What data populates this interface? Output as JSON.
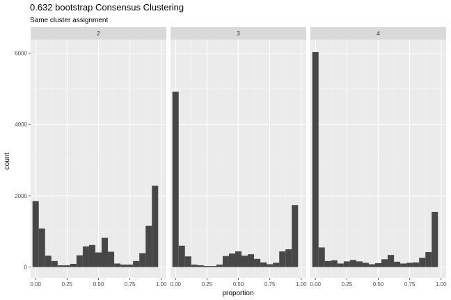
{
  "chart_data": {
    "type": "bar",
    "title": "0.632 bootstrap Consensus Clustering",
    "subtitle": "Same cluster assignment",
    "xlabel": "proportion",
    "ylabel": "count",
    "x_ticks": [
      "0.00",
      "0.25",
      "0.50",
      "0.75",
      "1.00"
    ],
    "y_ticks": [
      "0",
      "2000",
      "4000",
      "6000"
    ],
    "xlim": [
      -0.04,
      1.04
    ],
    "ylim": [
      -300,
      6380
    ],
    "grid": true,
    "bin_width": 0.05,
    "bin_centers": [
      0.0,
      0.05,
      0.1,
      0.15,
      0.2,
      0.25,
      0.3,
      0.35,
      0.4,
      0.45,
      0.5,
      0.55,
      0.6,
      0.65,
      0.7,
      0.75,
      0.8,
      0.85,
      0.9,
      0.95,
      1.0
    ],
    "facets": [
      {
        "label": "2",
        "values": [
          1850,
          1080,
          320,
          170,
          50,
          50,
          90,
          330,
          580,
          620,
          410,
          820,
          430,
          100,
          70,
          70,
          170,
          390,
          1160,
          2280,
          0
        ]
      },
      {
        "label": "3",
        "values": [
          4920,
          600,
          300,
          70,
          50,
          30,
          30,
          70,
          310,
          380,
          440,
          320,
          360,
          230,
          130,
          80,
          120,
          440,
          500,
          1740,
          0
        ]
      },
      {
        "label": "4",
        "values": [
          6030,
          550,
          170,
          190,
          100,
          160,
          200,
          160,
          120,
          80,
          110,
          220,
          340,
          150,
          100,
          120,
          130,
          260,
          420,
          1550,
          0
        ]
      }
    ]
  }
}
